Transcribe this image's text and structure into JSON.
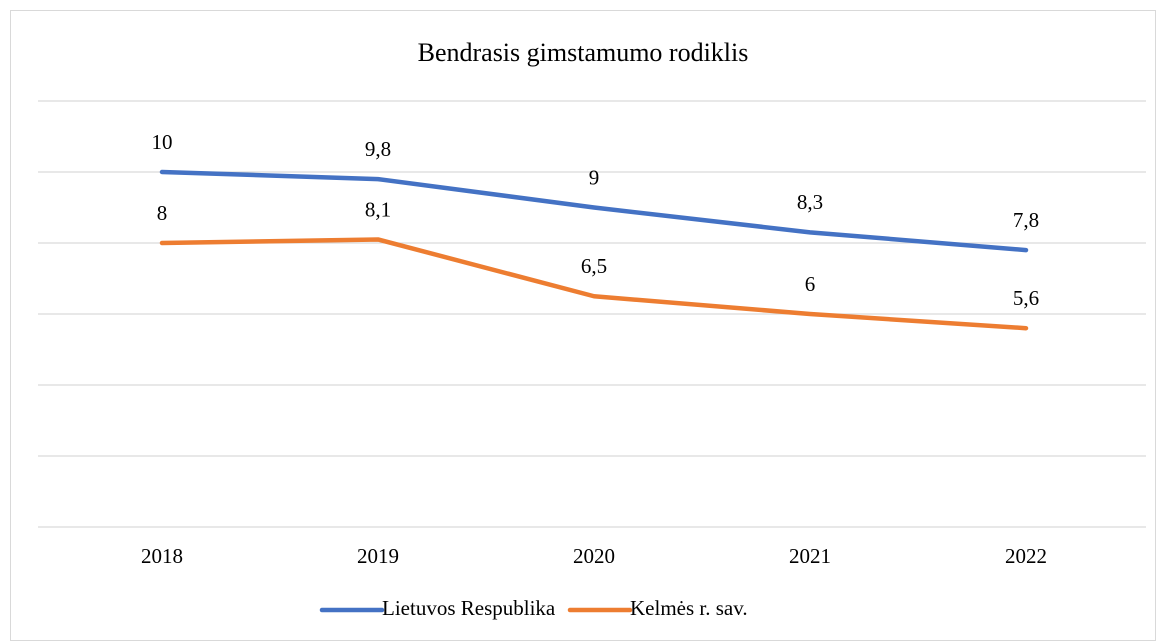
{
  "chart_data": {
    "type": "line",
    "title": "Bendrasis gimstamumo rodiklis",
    "categories": [
      "2018",
      "2019",
      "2020",
      "2021",
      "2022"
    ],
    "series": [
      {
        "name": "Lietuvos Respublika",
        "color": "#4472c4",
        "values": [
          10,
          9.8,
          9,
          8.3,
          7.8
        ],
        "value_labels": [
          "10",
          "9,8",
          "9",
          "8,3",
          "7,8"
        ]
      },
      {
        "name": "Kelmės r. sav.",
        "color": "#ed7d31",
        "values": [
          8,
          8.1,
          6.5,
          6,
          5.6
        ],
        "value_labels": [
          "8",
          "8,1",
          "6,5",
          "6",
          "5,6"
        ]
      }
    ],
    "ylim": [
      0,
      12
    ],
    "yticks": [
      0,
      2,
      4,
      6,
      8,
      10,
      12
    ],
    "grid": true,
    "legend": "bottom"
  }
}
